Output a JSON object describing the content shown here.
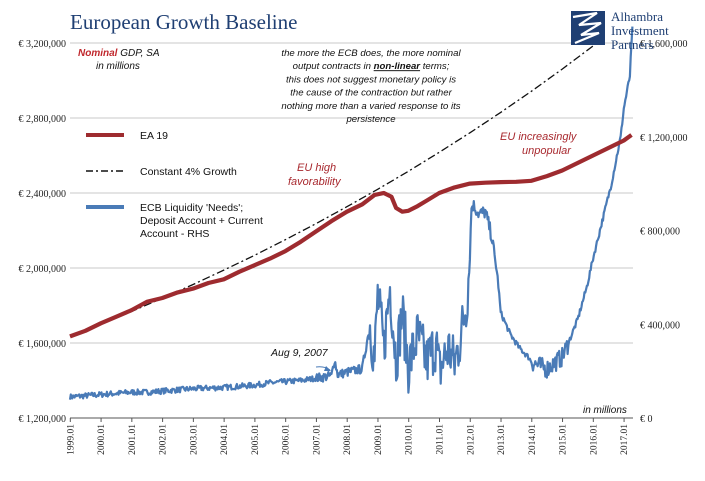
{
  "chart_data": {
    "type": "line",
    "title": "European Growth Baseline",
    "subtitle_strong": "Nominal",
    "subtitle_rest": " GDP, SA",
    "subtitle_line2": "in millions",
    "units_note": "in millions",
    "y_left": {
      "ticks": [
        "€ 1,200,000",
        "€ 1,600,000",
        "€ 2,000,000",
        "€ 2,400,000",
        "€ 2,800,000",
        "€ 3,200,000"
      ],
      "range": [
        1200000,
        3200000
      ]
    },
    "y_right": {
      "ticks": [
        "€ 0",
        "€ 400,000",
        "€ 800,000",
        "€ 1,200,000",
        "€ 1,600,000"
      ],
      "range": [
        0,
        1600000
      ]
    },
    "x_ticks": [
      "1999.01",
      "2000.01",
      "2001.01",
      "2002.01",
      "2003.01",
      "2004.01",
      "2005.01",
      "2006.01",
      "2007.01",
      "2008.01",
      "2009.01",
      "2010.01",
      "2011.01",
      "2012.01",
      "2013.01",
      "2014.01",
      "2015.01",
      "2016.01",
      "2017.01"
    ],
    "x_range": [
      1999.0,
      2017.3
    ],
    "grid": "horizontal",
    "legend": [
      {
        "label": "EA 19",
        "color": "#9e2b2f",
        "style": "solid"
      },
      {
        "label": "Constant 4% Growth",
        "color": "#111111",
        "style": "dashdot"
      },
      {
        "label_lines": [
          "ECB Liquidity 'Needs';",
          "Deposit Account + Current",
          "Account - RHS"
        ],
        "color": "#4a7bb7",
        "style": "solid"
      }
    ],
    "series": [
      {
        "name": "EA 19",
        "axis": "left",
        "color": "#9e2b2f",
        "points": [
          [
            1999.0,
            1635000
          ],
          [
            1999.5,
            1665000
          ],
          [
            2000.0,
            1705000
          ],
          [
            2000.5,
            1740000
          ],
          [
            2001.0,
            1775000
          ],
          [
            2001.5,
            1820000
          ],
          [
            2002.0,
            1840000
          ],
          [
            2002.5,
            1870000
          ],
          [
            2003.0,
            1890000
          ],
          [
            2003.5,
            1920000
          ],
          [
            2004.0,
            1940000
          ],
          [
            2004.5,
            1980000
          ],
          [
            2005.0,
            2015000
          ],
          [
            2005.5,
            2050000
          ],
          [
            2006.0,
            2090000
          ],
          [
            2006.5,
            2140000
          ],
          [
            2007.0,
            2195000
          ],
          [
            2007.5,
            2250000
          ],
          [
            2008.0,
            2300000
          ],
          [
            2008.5,
            2340000
          ],
          [
            2008.9,
            2390000
          ],
          [
            2009.2,
            2400000
          ],
          [
            2009.45,
            2380000
          ],
          [
            2009.6,
            2320000
          ],
          [
            2009.8,
            2300000
          ],
          [
            2010.0,
            2305000
          ],
          [
            2010.3,
            2330000
          ],
          [
            2010.6,
            2360000
          ],
          [
            2011.0,
            2400000
          ],
          [
            2011.5,
            2430000
          ],
          [
            2012.0,
            2450000
          ],
          [
            2012.5,
            2455000
          ],
          [
            2013.0,
            2458000
          ],
          [
            2013.5,
            2460000
          ],
          [
            2014.0,
            2465000
          ],
          [
            2014.5,
            2490000
          ],
          [
            2015.0,
            2520000
          ],
          [
            2015.5,
            2560000
          ],
          [
            2016.0,
            2600000
          ],
          [
            2016.5,
            2640000
          ],
          [
            2017.0,
            2680000
          ],
          [
            2017.25,
            2710000
          ]
        ]
      },
      {
        "name": "Constant 4% Growth",
        "axis": "left",
        "color": "#111111",
        "points": [
          [
            1999.0,
            1635000
          ],
          [
            2000.0,
            1700000
          ],
          [
            2001.0,
            1768000
          ],
          [
            2002.0,
            1839000
          ],
          [
            2003.0,
            1912000
          ],
          [
            2004.0,
            1989000
          ],
          [
            2005.0,
            2068000
          ],
          [
            2006.0,
            2151000
          ],
          [
            2007.0,
            2237000
          ],
          [
            2008.0,
            2327000
          ],
          [
            2009.0,
            2420000
          ],
          [
            2010.0,
            2516000
          ],
          [
            2011.0,
            2617000
          ],
          [
            2012.0,
            2721000
          ],
          [
            2013.0,
            2830000
          ],
          [
            2014.0,
            2943000
          ],
          [
            2015.0,
            3061000
          ],
          [
            2016.0,
            3184000
          ],
          [
            2016.3,
            3220000
          ]
        ]
      },
      {
        "name": "ECB Liquidity 'Needs'; Deposit Account + Current Account - RHS",
        "axis": "right",
        "color": "#4a7bb7",
        "points": [
          [
            1999.0,
            90000
          ],
          [
            1999.5,
            95000
          ],
          [
            2000.0,
            100000
          ],
          [
            2000.5,
            105000
          ],
          [
            2001.0,
            110000
          ],
          [
            2001.5,
            110000
          ],
          [
            2002.0,
            115000
          ],
          [
            2002.5,
            120000
          ],
          [
            2003.0,
            125000
          ],
          [
            2003.5,
            128000
          ],
          [
            2004.0,
            130000
          ],
          [
            2004.5,
            135000
          ],
          [
            2005.0,
            140000
          ],
          [
            2005.5,
            150000
          ],
          [
            2006.0,
            155000
          ],
          [
            2006.5,
            160000
          ],
          [
            2007.0,
            170000
          ],
          [
            2007.5,
            180000
          ],
          [
            2007.6,
            250000
          ],
          [
            2007.7,
            185000
          ],
          [
            2008.0,
            195000
          ],
          [
            2008.5,
            210000
          ],
          [
            2008.75,
            400000
          ],
          [
            2008.9,
            250000
          ],
          [
            2009.0,
            520000
          ],
          [
            2009.2,
            300000
          ],
          [
            2009.4,
            560000
          ],
          [
            2009.6,
            250000
          ],
          [
            2009.8,
            450000
          ],
          [
            2010.0,
            220000
          ],
          [
            2010.3,
            350000
          ],
          [
            2010.6,
            240000
          ],
          [
            2010.9,
            320000
          ],
          [
            2011.0,
            200000
          ],
          [
            2011.3,
            300000
          ],
          [
            2011.5,
            230000
          ],
          [
            2011.7,
            350000
          ],
          [
            2011.9,
            500000
          ],
          [
            2012.0,
            700000
          ],
          [
            2012.05,
            900000
          ],
          [
            2012.1,
            910000
          ],
          [
            2012.3,
            870000
          ],
          [
            2012.5,
            880000
          ],
          [
            2012.7,
            780000
          ],
          [
            2012.9,
            600000
          ],
          [
            2013.0,
            450000
          ],
          [
            2013.3,
            360000
          ],
          [
            2013.6,
            300000
          ],
          [
            2013.9,
            260000
          ],
          [
            2014.0,
            240000
          ],
          [
            2014.3,
            220000
          ],
          [
            2014.5,
            210000
          ],
          [
            2014.8,
            240000
          ],
          [
            2015.0,
            260000
          ],
          [
            2015.2,
            320000
          ],
          [
            2015.5,
            420000
          ],
          [
            2015.8,
            560000
          ],
          [
            2016.0,
            680000
          ],
          [
            2016.3,
            840000
          ],
          [
            2016.6,
            1000000
          ],
          [
            2016.9,
            1200000
          ],
          [
            2017.0,
            1320000
          ],
          [
            2017.2,
            1460000
          ],
          [
            2017.28,
            1670000
          ]
        ]
      }
    ],
    "annotations": {
      "top_note": [
        "the more the ECB does, the more nominal",
        "output contracts in {non-linear} terms;",
        "this does not suggest monetary policy is",
        "the cause of the contraction but rather",
        "nothing more than a varied response to its",
        "persistence"
      ],
      "top_note_emph": "non-linear",
      "eu_high": [
        "EU high",
        "favorability"
      ],
      "eu_unpopular": [
        "EU increasingly",
        "unpopular"
      ],
      "aug": "Aug 9, 2007"
    },
    "logo": [
      "Alhambra",
      "Investment",
      "Partners"
    ]
  }
}
